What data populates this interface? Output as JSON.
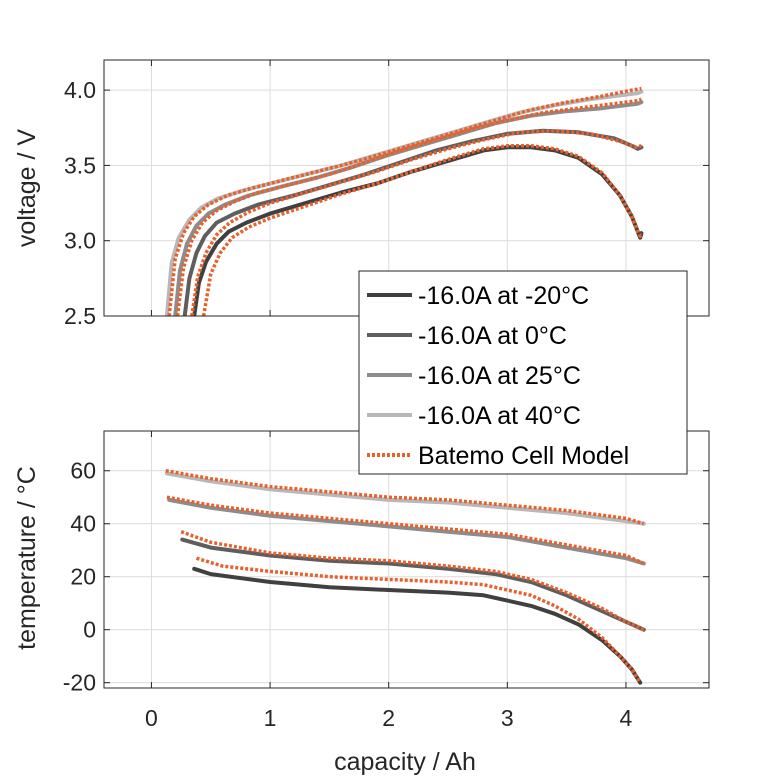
{
  "colors": {
    "m20": "#404040",
    "c0": "#5e5e5e",
    "c25": "#8c8c8c",
    "c40": "#b8b8b8",
    "model": "#e8612c",
    "grid": "#dcdcdc",
    "axis": "#262626"
  },
  "chart_data": [
    {
      "type": "line",
      "ylabel": "voltage / V",
      "xlim": [
        -0.4,
        4.7
      ],
      "ylim": [
        2.5,
        4.2
      ],
      "xticks": [
        0,
        1,
        2,
        3,
        4
      ],
      "yticks": [
        2.5,
        3.0,
        3.5,
        4.0
      ],
      "ytick_labels": [
        "2.5",
        "3.0",
        "3.5",
        "4.0"
      ],
      "grid": true,
      "legend": {
        "placement": "bottom-right",
        "entries": [
          "-16.0A at -20°C",
          "-16.0A at 0°C",
          "-16.0A at 25°C",
          "-16.0A at 40°C",
          "Batemo Cell Model"
        ]
      },
      "series": [
        {
          "name": "-16.0A at -20°C",
          "color_key": "m20",
          "style": "solid",
          "x": [
            0.36,
            0.4,
            0.46,
            0.55,
            0.65,
            0.8,
            1.0,
            1.3,
            1.6,
            1.9,
            2.2,
            2.5,
            2.8,
            3.0,
            3.2,
            3.4,
            3.6,
            3.8,
            3.95,
            4.05,
            4.1,
            4.12,
            4.13
          ],
          "y": [
            2.5,
            2.72,
            2.86,
            2.98,
            3.06,
            3.12,
            3.18,
            3.25,
            3.32,
            3.38,
            3.46,
            3.53,
            3.6,
            3.62,
            3.62,
            3.6,
            3.55,
            3.44,
            3.3,
            3.16,
            3.06,
            3.02,
            3.05
          ]
        },
        {
          "name": "-16.0A at 0°C",
          "color_key": "c0",
          "style": "solid",
          "x": [
            0.28,
            0.32,
            0.38,
            0.45,
            0.55,
            0.7,
            0.9,
            1.2,
            1.5,
            1.8,
            2.1,
            2.4,
            2.7,
            3.0,
            3.3,
            3.6,
            3.9,
            4.05,
            4.1,
            4.13
          ],
          "y": [
            2.5,
            2.75,
            2.92,
            3.03,
            3.12,
            3.18,
            3.24,
            3.3,
            3.37,
            3.44,
            3.52,
            3.6,
            3.66,
            3.71,
            3.73,
            3.72,
            3.68,
            3.63,
            3.61,
            3.62
          ]
        },
        {
          "name": "-16.0A at 25°C",
          "color_key": "c25",
          "style": "solid",
          "x": [
            0.2,
            0.24,
            0.3,
            0.38,
            0.48,
            0.62,
            0.82,
            1.1,
            1.4,
            1.7,
            2.0,
            2.3,
            2.6,
            2.9,
            3.2,
            3.5,
            3.8,
            4.0,
            4.1,
            4.13
          ],
          "y": [
            2.5,
            2.8,
            2.98,
            3.1,
            3.18,
            3.24,
            3.3,
            3.36,
            3.42,
            3.49,
            3.57,
            3.64,
            3.71,
            3.78,
            3.83,
            3.86,
            3.88,
            3.9,
            3.91,
            3.92
          ]
        },
        {
          "name": "-16.0A at 40°C",
          "color_key": "c40",
          "style": "solid",
          "x": [
            0.13,
            0.17,
            0.23,
            0.32,
            0.42,
            0.56,
            0.76,
            1.0,
            1.3,
            1.6,
            1.9,
            2.2,
            2.5,
            2.8,
            3.1,
            3.4,
            3.7,
            4.0,
            4.1,
            4.13
          ],
          "y": [
            2.5,
            2.85,
            3.02,
            3.14,
            3.22,
            3.28,
            3.33,
            3.38,
            3.44,
            3.5,
            3.57,
            3.64,
            3.71,
            3.78,
            3.85,
            3.9,
            3.94,
            3.97,
            3.98,
            3.99
          ]
        },
        {
          "name": "Batemo Cell Model",
          "color_key": "model",
          "style": "dotted",
          "x": [
            0.44,
            0.5,
            0.58,
            0.68,
            0.82,
            1.0,
            1.3,
            1.6,
            1.9,
            2.2,
            2.5,
            2.8,
            3.0,
            3.2,
            3.4,
            3.6,
            3.8,
            3.95,
            4.05,
            4.1,
            4.12,
            4.13
          ],
          "y": [
            2.5,
            2.78,
            2.92,
            3.02,
            3.09,
            3.15,
            3.23,
            3.31,
            3.38,
            3.46,
            3.54,
            3.61,
            3.63,
            3.63,
            3.61,
            3.56,
            3.45,
            3.3,
            3.16,
            3.06,
            3.03,
            3.05
          ]
        },
        {
          "name": "",
          "color_key": "model",
          "style": "dotted",
          "x": [
            0.34,
            0.39,
            0.46,
            0.55,
            0.66,
            0.82,
            1.0,
            1.3,
            1.6,
            1.9,
            2.2,
            2.5,
            2.8,
            3.1,
            3.4,
            3.7,
            3.95,
            4.08,
            4.13
          ],
          "y": [
            2.5,
            2.76,
            2.92,
            3.04,
            3.12,
            3.19,
            3.25,
            3.32,
            3.39,
            3.46,
            3.54,
            3.61,
            3.67,
            3.72,
            3.73,
            3.71,
            3.66,
            3.62,
            3.63
          ]
        },
        {
          "name": "",
          "color_key": "model",
          "style": "dotted",
          "x": [
            0.22,
            0.27,
            0.34,
            0.43,
            0.55,
            0.7,
            0.9,
            1.2,
            1.5,
            1.8,
            2.1,
            2.4,
            2.7,
            3.0,
            3.3,
            3.6,
            3.9,
            4.1,
            4.13
          ],
          "y": [
            2.5,
            2.82,
            3.0,
            3.12,
            3.2,
            3.26,
            3.32,
            3.38,
            3.44,
            3.52,
            3.6,
            3.67,
            3.74,
            3.8,
            3.85,
            3.88,
            3.91,
            3.93,
            3.94
          ]
        },
        {
          "name": "",
          "color_key": "model",
          "style": "dotted",
          "x": [
            0.15,
            0.2,
            0.27,
            0.36,
            0.48,
            0.64,
            0.85,
            1.1,
            1.4,
            1.7,
            2.0,
            2.3,
            2.6,
            2.9,
            3.2,
            3.5,
            3.8,
            4.05,
            4.13
          ],
          "y": [
            2.5,
            2.88,
            3.05,
            3.16,
            3.24,
            3.3,
            3.35,
            3.4,
            3.46,
            3.52,
            3.59,
            3.66,
            3.73,
            3.8,
            3.87,
            3.92,
            3.96,
            4.0,
            4.01
          ]
        }
      ]
    },
    {
      "type": "line",
      "xlabel": "capacity / Ah",
      "ylabel": "temperature / °C",
      "xlim": [
        -0.4,
        4.7
      ],
      "ylim": [
        -22,
        75
      ],
      "xticks": [
        0,
        1,
        2,
        3,
        4
      ],
      "xtick_labels": [
        "0",
        "1",
        "2",
        "3",
        "4"
      ],
      "yticks": [
        -20,
        0,
        20,
        40,
        60
      ],
      "ytick_labels": [
        "-20",
        "0",
        "20",
        "40",
        "60"
      ],
      "grid": true,
      "series": [
        {
          "name": "-16.0A at -20°C",
          "color_key": "m20",
          "style": "solid",
          "x": [
            0.36,
            0.5,
            1.0,
            1.5,
            2.0,
            2.5,
            2.8,
            3.0,
            3.2,
            3.4,
            3.6,
            3.8,
            3.95,
            4.05,
            4.12
          ],
          "y": [
            23,
            21,
            18,
            16,
            15,
            14,
            13,
            11,
            9,
            6,
            2,
            -4,
            -10,
            -15,
            -20
          ]
        },
        {
          "name": "-16.0A at 0°C",
          "color_key": "c0",
          "style": "solid",
          "x": [
            0.26,
            0.5,
            1.0,
            1.5,
            2.0,
            2.5,
            2.9,
            3.2,
            3.5,
            3.8,
            4.0,
            4.15
          ],
          "y": [
            34,
            31,
            28,
            26,
            25,
            23,
            21,
            18,
            13,
            7,
            3,
            0
          ]
        },
        {
          "name": "-16.0A at 25°C",
          "color_key": "c25",
          "style": "solid",
          "x": [
            0.15,
            0.5,
            1.0,
            1.5,
            2.0,
            2.5,
            3.0,
            3.5,
            4.0,
            4.15
          ],
          "y": [
            49,
            46,
            43,
            41,
            39,
            37,
            35,
            31,
            27,
            25
          ]
        },
        {
          "name": "-16.0A at 40°C",
          "color_key": "c40",
          "style": "solid",
          "x": [
            0.13,
            0.5,
            1.0,
            1.5,
            2.0,
            2.5,
            3.0,
            3.5,
            4.0,
            4.15
          ],
          "y": [
            59,
            56,
            53,
            51,
            49,
            48,
            46,
            44,
            41,
            40
          ]
        },
        {
          "name": "Batemo Cell Model",
          "color_key": "model",
          "style": "dotted",
          "x": [
            0.38,
            0.6,
            1.0,
            1.5,
            2.0,
            2.5,
            2.8,
            3.0,
            3.2,
            3.4,
            3.6,
            3.8,
            3.95,
            4.05,
            4.12
          ],
          "y": [
            27,
            24,
            22,
            20,
            19,
            18,
            17,
            15,
            13,
            9,
            4,
            -3,
            -10,
            -15,
            -20
          ]
        },
        {
          "name": "",
          "color_key": "model",
          "style": "dotted",
          "x": [
            0.25,
            0.5,
            1.0,
            1.5,
            2.0,
            2.5,
            2.9,
            3.2,
            3.5,
            3.8,
            4.0,
            4.15
          ],
          "y": [
            37,
            33,
            29,
            27,
            26,
            24,
            22,
            19,
            14,
            8,
            3,
            0
          ]
        },
        {
          "name": "",
          "color_key": "model",
          "style": "dotted",
          "x": [
            0.13,
            0.5,
            1.0,
            1.5,
            2.0,
            2.5,
            3.0,
            3.5,
            4.0,
            4.15
          ],
          "y": [
            50,
            47,
            44,
            42,
            40,
            38,
            36,
            32,
            28,
            25
          ]
        },
        {
          "name": "",
          "color_key": "model",
          "style": "dotted",
          "x": [
            0.12,
            0.5,
            1.0,
            1.5,
            2.0,
            2.5,
            3.0,
            3.5,
            4.0,
            4.15
          ],
          "y": [
            60,
            57,
            54,
            52,
            50,
            49,
            47,
            45,
            42,
            40
          ]
        }
      ]
    }
  ]
}
